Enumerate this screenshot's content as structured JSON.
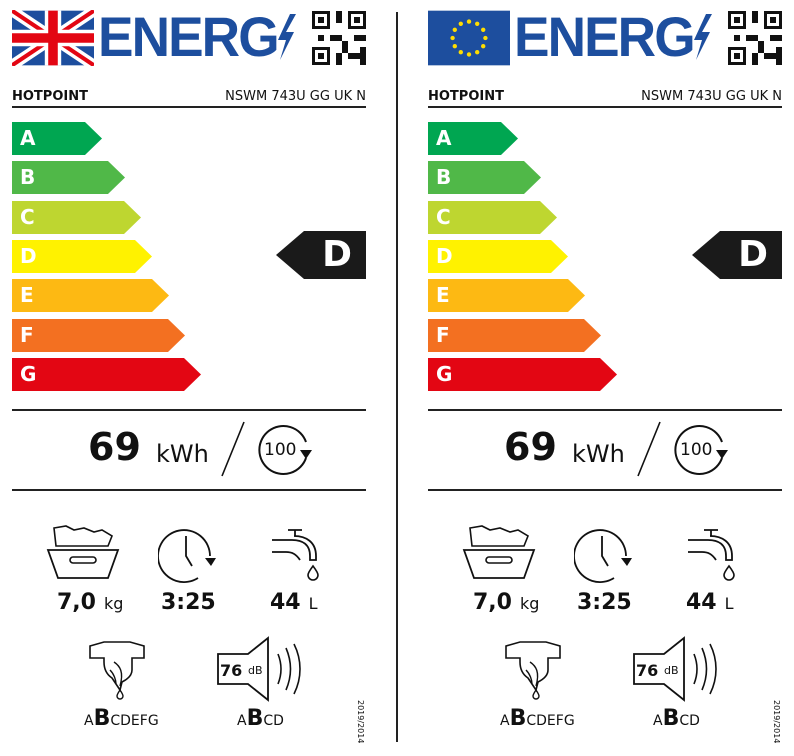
{
  "labels": [
    {
      "region_flag": "uk-flag-icon",
      "energy_word": "ENERG",
      "brand": "HOTPOINT",
      "model": "NSWM 743U GG UK N",
      "scale": [
        "A",
        "B",
        "C",
        "D",
        "E",
        "F",
        "G"
      ],
      "rating": "D",
      "energy_value": "69",
      "energy_unit": "kWh",
      "cycles": "100",
      "capacity": "7,0",
      "capacity_unit": "kg",
      "duration": "3:25",
      "water": "44",
      "water_unit": "L",
      "spin_class_pre": "A",
      "spin_class": "B",
      "spin_class_post": "CDEFG",
      "noise": "76",
      "noise_unit": "dB",
      "noise_class_pre": "A",
      "noise_class": "B",
      "noise_class_post": "CD",
      "regulation": "2019/2014"
    },
    {
      "region_flag": "eu-flag-icon",
      "energy_word": "ENERG",
      "brand": "HOTPOINT",
      "model": "NSWM 743U GG UK N",
      "scale": [
        "A",
        "B",
        "C",
        "D",
        "E",
        "F",
        "G"
      ],
      "rating": "D",
      "energy_value": "69",
      "energy_unit": "kWh",
      "cycles": "100",
      "capacity": "7,0",
      "capacity_unit": "kg",
      "duration": "3:25",
      "water": "44",
      "water_unit": "L",
      "spin_class_pre": "A",
      "spin_class": "B",
      "spin_class_post": "CDEFG",
      "noise": "76",
      "noise_unit": "dB",
      "noise_class_pre": "A",
      "noise_class": "B",
      "noise_class_post": "CD",
      "regulation": "2019/2014"
    }
  ],
  "colors": {
    "A": "#00a651",
    "B": "#50b848",
    "C": "#bed630",
    "D": "#fff200",
    "E": "#fdb913",
    "F": "#f37021",
    "G": "#e30613",
    "brand_blue": "#1d4e9e"
  }
}
